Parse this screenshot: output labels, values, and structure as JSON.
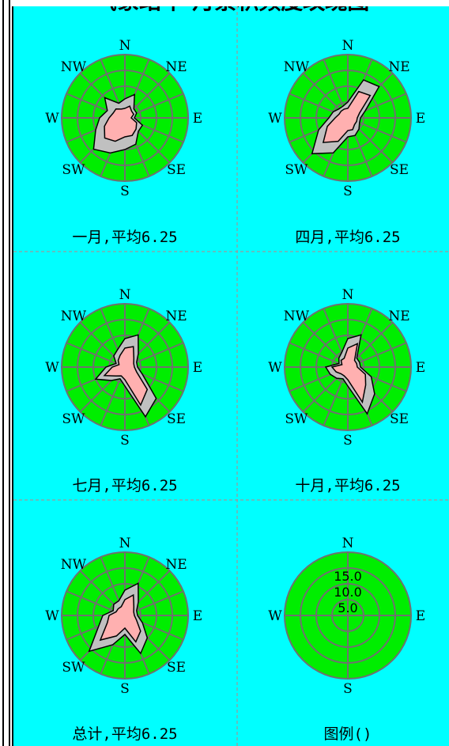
{
  "title": "气象站年-月累积频度玫瑰图",
  "colors": {
    "background": "#00ffff",
    "disc": "#00ee00",
    "ring": "#707070",
    "polygon_a": "#c0c0c0",
    "polygon_b": "#ffb0b0"
  },
  "directions": [
    "N",
    "NE",
    "E",
    "SE",
    "S",
    "SW",
    "W",
    "NW"
  ],
  "legend_directions": [
    "N",
    "E",
    "S",
    "W"
  ],
  "chart_data": [
    {
      "type": "rose",
      "label": "一月,平均6.25",
      "series": [
        {
          "name": "",
          "values": [
            6,
            8,
            4,
            4,
            3,
            6,
            6,
            9,
            10,
            12,
            14,
            10,
            8,
            6,
            9,
            5
          ]
        },
        {
          "name": "",
          "values": [
            3,
            4,
            3,
            3,
            2,
            4,
            5,
            6,
            6,
            8,
            9,
            7,
            5,
            4,
            4,
            3
          ]
        }
      ]
    },
    {
      "type": "rose",
      "label": "四月,平均6.25",
      "series": [
        {
          "name": "",
          "values": [
            5,
            13,
            14,
            6,
            4,
            4,
            5,
            6,
            6,
            12,
            16,
            10,
            6,
            5,
            4,
            4
          ]
        },
        {
          "name": "",
          "values": [
            3,
            9,
            10,
            4,
            3,
            3,
            3,
            4,
            4,
            8,
            11,
            7,
            4,
            3,
            3,
            3
          ]
        }
      ]
    },
    {
      "type": "rose",
      "label": "七月,平均6.25",
      "series": [
        {
          "name": "",
          "values": [
            9,
            11,
            6,
            4,
            4,
            6,
            14,
            17,
            6,
            4,
            6,
            10,
            6,
            3,
            5,
            6
          ]
        },
        {
          "name": "",
          "values": [
            6,
            7,
            4,
            3,
            3,
            4,
            10,
            13,
            4,
            3,
            4,
            7,
            4,
            2,
            3,
            4
          ]
        }
      ]
    },
    {
      "type": "rose",
      "label": "十月,平均6.25",
      "series": [
        {
          "name": "",
          "values": [
            9,
            11,
            4,
            4,
            4,
            8,
            12,
            16,
            6,
            4,
            5,
            6,
            7,
            3,
            4,
            5
          ]
        },
        {
          "name": "",
          "values": [
            6,
            8,
            3,
            3,
            3,
            6,
            8,
            12,
            4,
            3,
            3,
            4,
            5,
            2,
            3,
            3
          ]
        }
      ]
    },
    {
      "type": "rose",
      "label": "总计,平均6.25",
      "series": [
        {
          "name": "",
          "values": [
            8,
            11,
            6,
            4,
            4,
            6,
            10,
            13,
            6,
            10,
            16,
            9,
            7,
            4,
            5,
            5
          ]
        },
        {
          "name": "",
          "values": [
            5,
            7,
            4,
            3,
            3,
            4,
            7,
            9,
            4,
            7,
            11,
            6,
            5,
            3,
            3,
            3
          ]
        }
      ]
    },
    {
      "type": "legend",
      "label": "图例()",
      "ring_labels": [
        "15.0",
        "10.0",
        "5.0"
      ],
      "ring_values": [
        15,
        10,
        5
      ]
    }
  ]
}
